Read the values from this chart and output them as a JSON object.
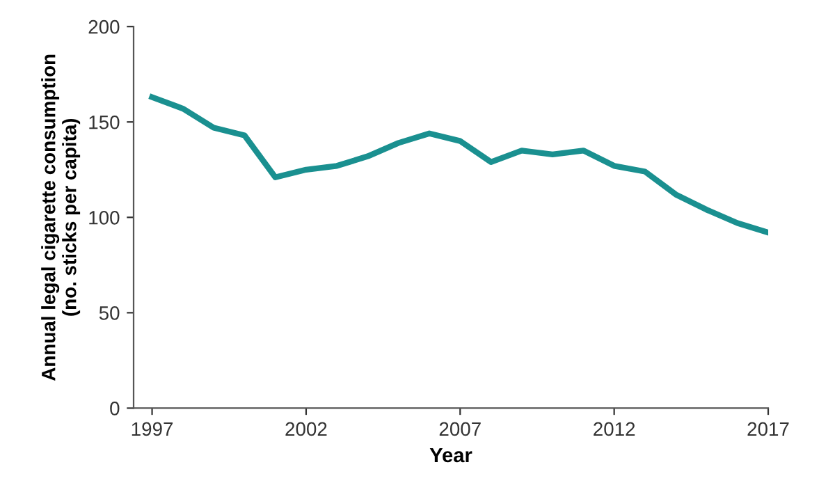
{
  "chart_data": {
    "type": "line",
    "xlabel": "Year",
    "ylabel": "Annual legal cigarette consumption\n(no. sticks per capita)",
    "x": [
      1997,
      1998,
      1999,
      2000,
      2001,
      2002,
      2003,
      2004,
      2005,
      2006,
      2007,
      2008,
      2009,
      2010,
      2011,
      2012,
      2013,
      2014,
      2015,
      2016,
      2017
    ],
    "series": [
      {
        "color": "#1a9090",
        "values": [
          163,
          157,
          147,
          143,
          121,
          125,
          127,
          132,
          139,
          144,
          140,
          129,
          135,
          133,
          135,
          127,
          124,
          112,
          104,
          97,
          92
        ]
      }
    ],
    "xlim": [
      1996.4,
      2017
    ],
    "xticks": [
      1997,
      2002,
      2007,
      2012,
      2017
    ],
    "ylim": [
      0,
      200
    ],
    "yticks": [
      0,
      50,
      100,
      150,
      200
    ],
    "grid": false,
    "legend": false,
    "marker": "none",
    "line_style": "solid"
  }
}
